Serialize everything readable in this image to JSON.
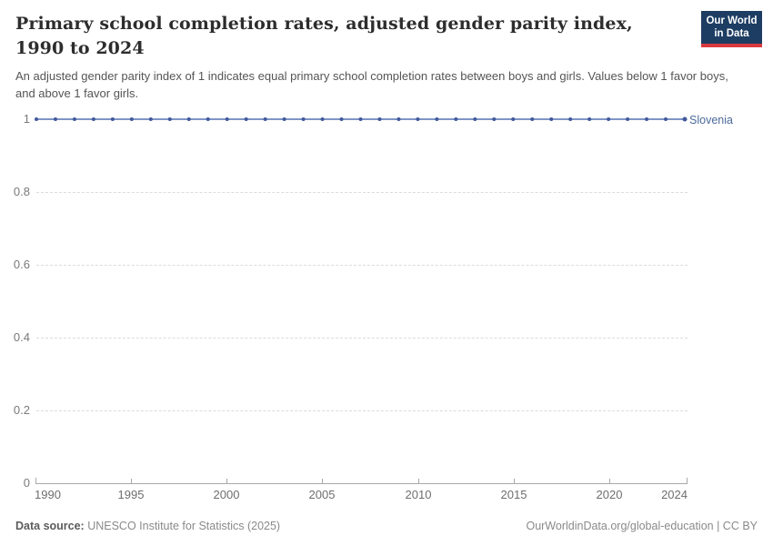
{
  "header": {
    "title": "Primary school completion rates, adjusted gender parity index, 1990 to 2024",
    "subtitle": "An adjusted gender parity index of 1 indicates equal primary school completion rates between boys and girls. Values below 1 favor boys, and above 1 favor girls.",
    "logo": {
      "line1": "Our World",
      "line2": "in Data",
      "bg_color": "#1d3d63",
      "stripe_color": "#d93a3f"
    }
  },
  "chart_data": {
    "type": "line",
    "title": "Primary school completion rates, adjusted gender parity index, 1990 to 2024",
    "xlabel": "",
    "ylabel": "",
    "xlim": [
      1990,
      2024
    ],
    "ylim": [
      0,
      1
    ],
    "grid": "horizontal dashed",
    "legend_position": "end-of-line label",
    "x_tick_labels": [
      "1990",
      "1995",
      "2000",
      "2005",
      "2010",
      "2015",
      "2020",
      "2024"
    ],
    "x_tick_values": [
      1990,
      1995,
      2000,
      2005,
      2010,
      2015,
      2020,
      2024
    ],
    "y_tick_labels": [
      "1",
      "0.8",
      "0.6",
      "0.4",
      "0.2",
      "0"
    ],
    "y_tick_values": [
      1,
      0.8,
      0.6,
      0.4,
      0.2,
      0
    ],
    "series": [
      {
        "name": "Slovenia",
        "color": "#4c6a9c",
        "line_color": "#7e95c5",
        "marker_color": "#41599c",
        "x": [
          1990,
          1991,
          1992,
          1993,
          1994,
          1995,
          1996,
          1997,
          1998,
          1999,
          2000,
          2001,
          2002,
          2003,
          2004,
          2005,
          2006,
          2007,
          2008,
          2009,
          2010,
          2011,
          2012,
          2013,
          2014,
          2015,
          2016,
          2017,
          2018,
          2019,
          2020,
          2021,
          2022,
          2023,
          2024
        ],
        "values": [
          1,
          1,
          1,
          1,
          1,
          1,
          1,
          1,
          1,
          1,
          1,
          1,
          1,
          1,
          1,
          1,
          1,
          1,
          1,
          1,
          1,
          1,
          1,
          1,
          1,
          1,
          1,
          1,
          1,
          1,
          1,
          1,
          1,
          1,
          1
        ]
      }
    ]
  },
  "footer": {
    "source_label": "Data source:",
    "source_text": " UNESCO Institute for Statistics (2025)",
    "right_text": "OurWorldinData.org/global-education | CC BY"
  }
}
